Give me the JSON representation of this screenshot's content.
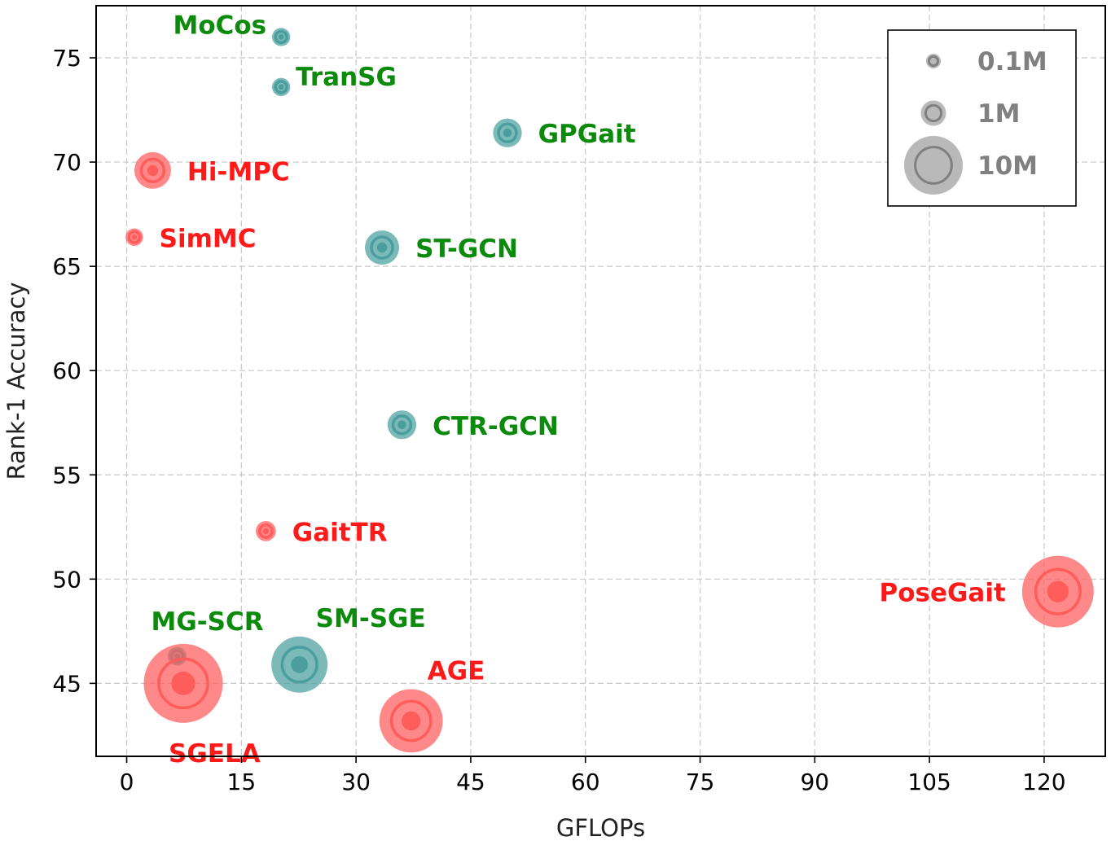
{
  "chart_data": {
    "type": "scatter",
    "title": "",
    "xlabel": "GFLOPs",
    "ylabel": "Rank-1 Accuracy",
    "xlim": [
      -4,
      128
    ],
    "ylim": [
      41.5,
      77.5
    ],
    "xticks": [
      0,
      15,
      30,
      45,
      60,
      75,
      90,
      105,
      120
    ],
    "yticks": [
      45,
      50,
      55,
      60,
      65,
      70,
      75
    ],
    "grid": true,
    "legend_placement": "top-right",
    "legend": [
      {
        "label": "0.1M",
        "params_m": 0.1
      },
      {
        "label": "1M",
        "params_m": 1
      },
      {
        "label": "10M",
        "params_m": 10
      }
    ],
    "colors": {
      "teal_point": "#4a9e9e",
      "red_point": "#ff5c5c",
      "green_label": "#0b8a0b",
      "red_label": "#ff1a1a",
      "legend_gray": "#808080"
    },
    "points": [
      {
        "name": "MoCos",
        "x": 20.2,
        "y": 76.0,
        "params_m": 0.3,
        "group": "teal",
        "label_pos": "upper-left"
      },
      {
        "name": "TranSG",
        "x": 20.2,
        "y": 73.6,
        "params_m": 0.3,
        "group": "teal",
        "label_pos": "upper-right"
      },
      {
        "name": "GPGait",
        "x": 49.8,
        "y": 71.4,
        "params_m": 1.5,
        "group": "teal",
        "label_pos": "right"
      },
      {
        "name": "Hi-MPC",
        "x": 3.4,
        "y": 69.6,
        "params_m": 3.0,
        "group": "red",
        "label_pos": "right"
      },
      {
        "name": "SimMC",
        "x": 1.0,
        "y": 66.4,
        "params_m": 0.25,
        "group": "red",
        "label_pos": "right"
      },
      {
        "name": "ST-GCN",
        "x": 33.4,
        "y": 65.9,
        "params_m": 2.5,
        "group": "teal",
        "label_pos": "right"
      },
      {
        "name": "CTR-GCN",
        "x": 36.0,
        "y": 57.4,
        "params_m": 1.5,
        "group": "teal",
        "label_pos": "right"
      },
      {
        "name": "GaitTR",
        "x": 18.2,
        "y": 52.3,
        "params_m": 0.45,
        "group": "red",
        "label_pos": "right"
      },
      {
        "name": "PoseGait",
        "x": 121.8,
        "y": 49.4,
        "params_m": 16.0,
        "group": "red",
        "label_pos": "left"
      },
      {
        "name": "MG-SCR",
        "x": 6.6,
        "y": 46.3,
        "params_m": 0.35,
        "group": "teal",
        "label_pos": "upper-right"
      },
      {
        "name": "SM-SGE",
        "x": 22.6,
        "y": 45.9,
        "params_m": 9.0,
        "group": "teal",
        "label_pos": "upper-right"
      },
      {
        "name": "SGELA",
        "x": 7.4,
        "y": 45.0,
        "params_m": 20.0,
        "group": "red",
        "label_pos": "lower-right"
      },
      {
        "name": "AGE",
        "x": 37.2,
        "y": 43.2,
        "params_m": 12.0,
        "group": "red",
        "label_pos": "upper-right"
      }
    ]
  }
}
